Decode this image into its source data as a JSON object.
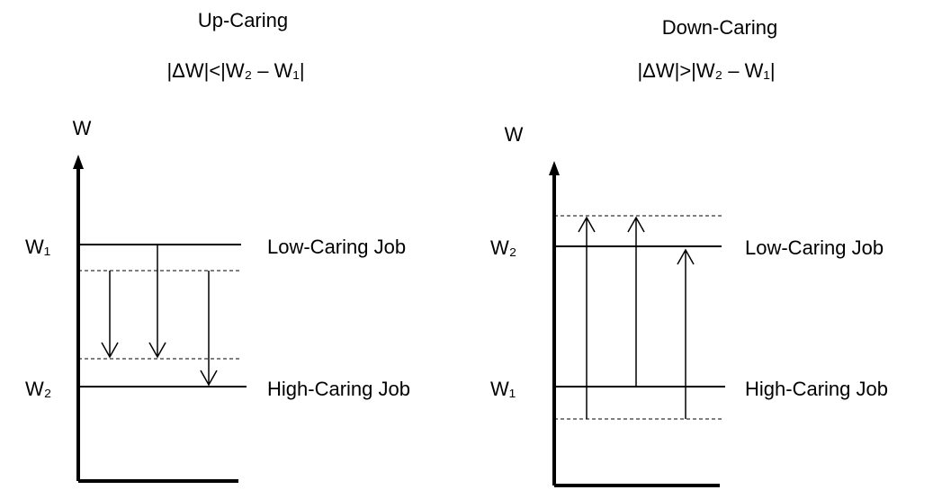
{
  "panels": [
    {
      "title": "Up-Caring",
      "formula": "|ΔW|<|W₂ – W₁|",
      "axis_label": "W",
      "upper_level": "W₁",
      "lower_level": "W₂",
      "upper_job": "Low-Caring Job",
      "lower_job": "High-Caring Job"
    },
    {
      "title": "Down-Caring",
      "formula": "|ΔW|>|W₂ – W₁|",
      "axis_label": "W",
      "upper_level": "W₂",
      "lower_level": "W₁",
      "upper_job": "Low-Caring Job",
      "lower_job": "High-Caring Job"
    }
  ]
}
